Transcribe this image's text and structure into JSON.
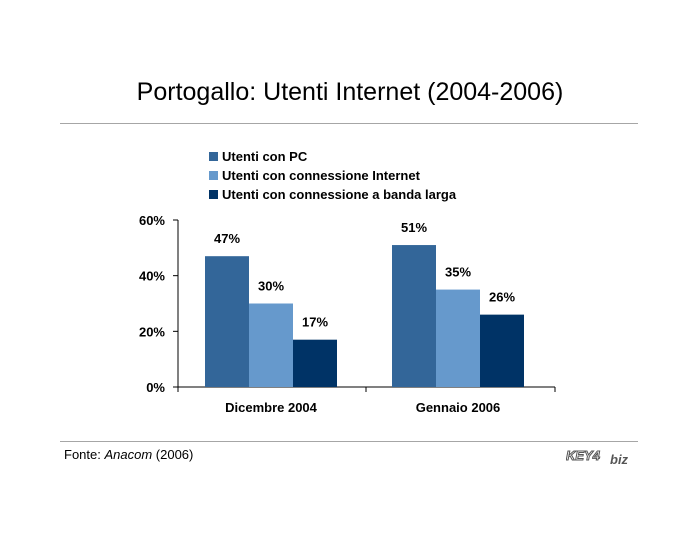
{
  "title": "Portogallo: Utenti Internet (2004-2006)",
  "source": {
    "prefix": "Fonte: ",
    "name": "Anacom",
    "suffix": " (2006)"
  },
  "logo": {
    "text_main": "KEY4",
    "text_sub": "biz"
  },
  "colors": {
    "series1": "#336699",
    "series2": "#6699CC",
    "series3": "#003366",
    "rule": "#a6a6a6"
  },
  "chart_data": {
    "type": "bar",
    "categories": [
      "Dicembre 2004",
      "Gennaio 2006"
    ],
    "series": [
      {
        "name": "Utenti con PC",
        "values": [
          47,
          51
        ],
        "labels": [
          "47%",
          "51%"
        ]
      },
      {
        "name": "Utenti con connessione Internet",
        "values": [
          30,
          35
        ],
        "labels": [
          "30%",
          "35%"
        ]
      },
      {
        "name": "Utenti con connessione a banda larga",
        "values": [
          17,
          26
        ],
        "labels": [
          "17%",
          "26%"
        ]
      }
    ],
    "ylim": [
      0,
      60
    ],
    "yticks": [
      0,
      20,
      40,
      60
    ],
    "ytick_labels": [
      "0%",
      "20%",
      "40%",
      "60%"
    ],
    "legend_position": "top",
    "grid": false
  }
}
